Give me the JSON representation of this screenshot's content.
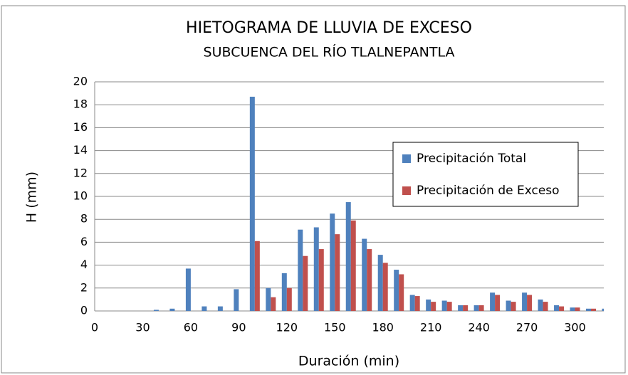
{
  "chart_data": {
    "type": "bar",
    "title": "HIETOGRAMA DE LLUVIA DE EXCESO",
    "subtitle": "SUBCUENCA DEL RÍO TLALNEPANTLA",
    "xlabel": "Duración (min)",
    "ylabel": "H (mm)",
    "x": [
      10,
      20,
      30,
      40,
      50,
      60,
      70,
      80,
      90,
      100,
      110,
      120,
      130,
      140,
      150,
      160,
      170,
      180,
      190,
      200,
      210,
      220,
      230,
      240,
      250,
      260,
      270,
      280,
      290,
      300,
      310,
      320
    ],
    "series": [
      {
        "name": "Precipitación Total",
        "color": "#4f81bd",
        "values": [
          0,
          0,
          0,
          0.1,
          0.2,
          3.7,
          0.4,
          0.4,
          1.9,
          18.7,
          2.0,
          3.3,
          7.1,
          7.3,
          8.5,
          9.5,
          6.3,
          4.9,
          3.6,
          1.4,
          1.0,
          0.9,
          0.5,
          0.5,
          1.6,
          0.9,
          1.6,
          1.0,
          0.5,
          0.3,
          0.2,
          0.2
        ]
      },
      {
        "name": "Precipitación de Exceso",
        "color": "#c0504d",
        "values": [
          0,
          0,
          0,
          0,
          0,
          0,
          0,
          0,
          0,
          6.1,
          1.2,
          2.0,
          4.8,
          5.4,
          6.7,
          7.9,
          5.4,
          4.2,
          3.2,
          1.3,
          0.8,
          0.8,
          0.5,
          0.5,
          1.4,
          0.8,
          1.4,
          0.8,
          0.4,
          0.3,
          0.2,
          0
        ]
      }
    ],
    "xlim": [
      0,
      318
    ],
    "xticks": [
      0,
      30,
      60,
      90,
      120,
      150,
      180,
      210,
      240,
      270,
      300
    ],
    "ylim": [
      0,
      20
    ],
    "yticks": [
      0,
      2,
      4,
      6,
      8,
      10,
      12,
      14,
      16,
      18,
      20
    ],
    "grid": true,
    "legend": "right"
  }
}
